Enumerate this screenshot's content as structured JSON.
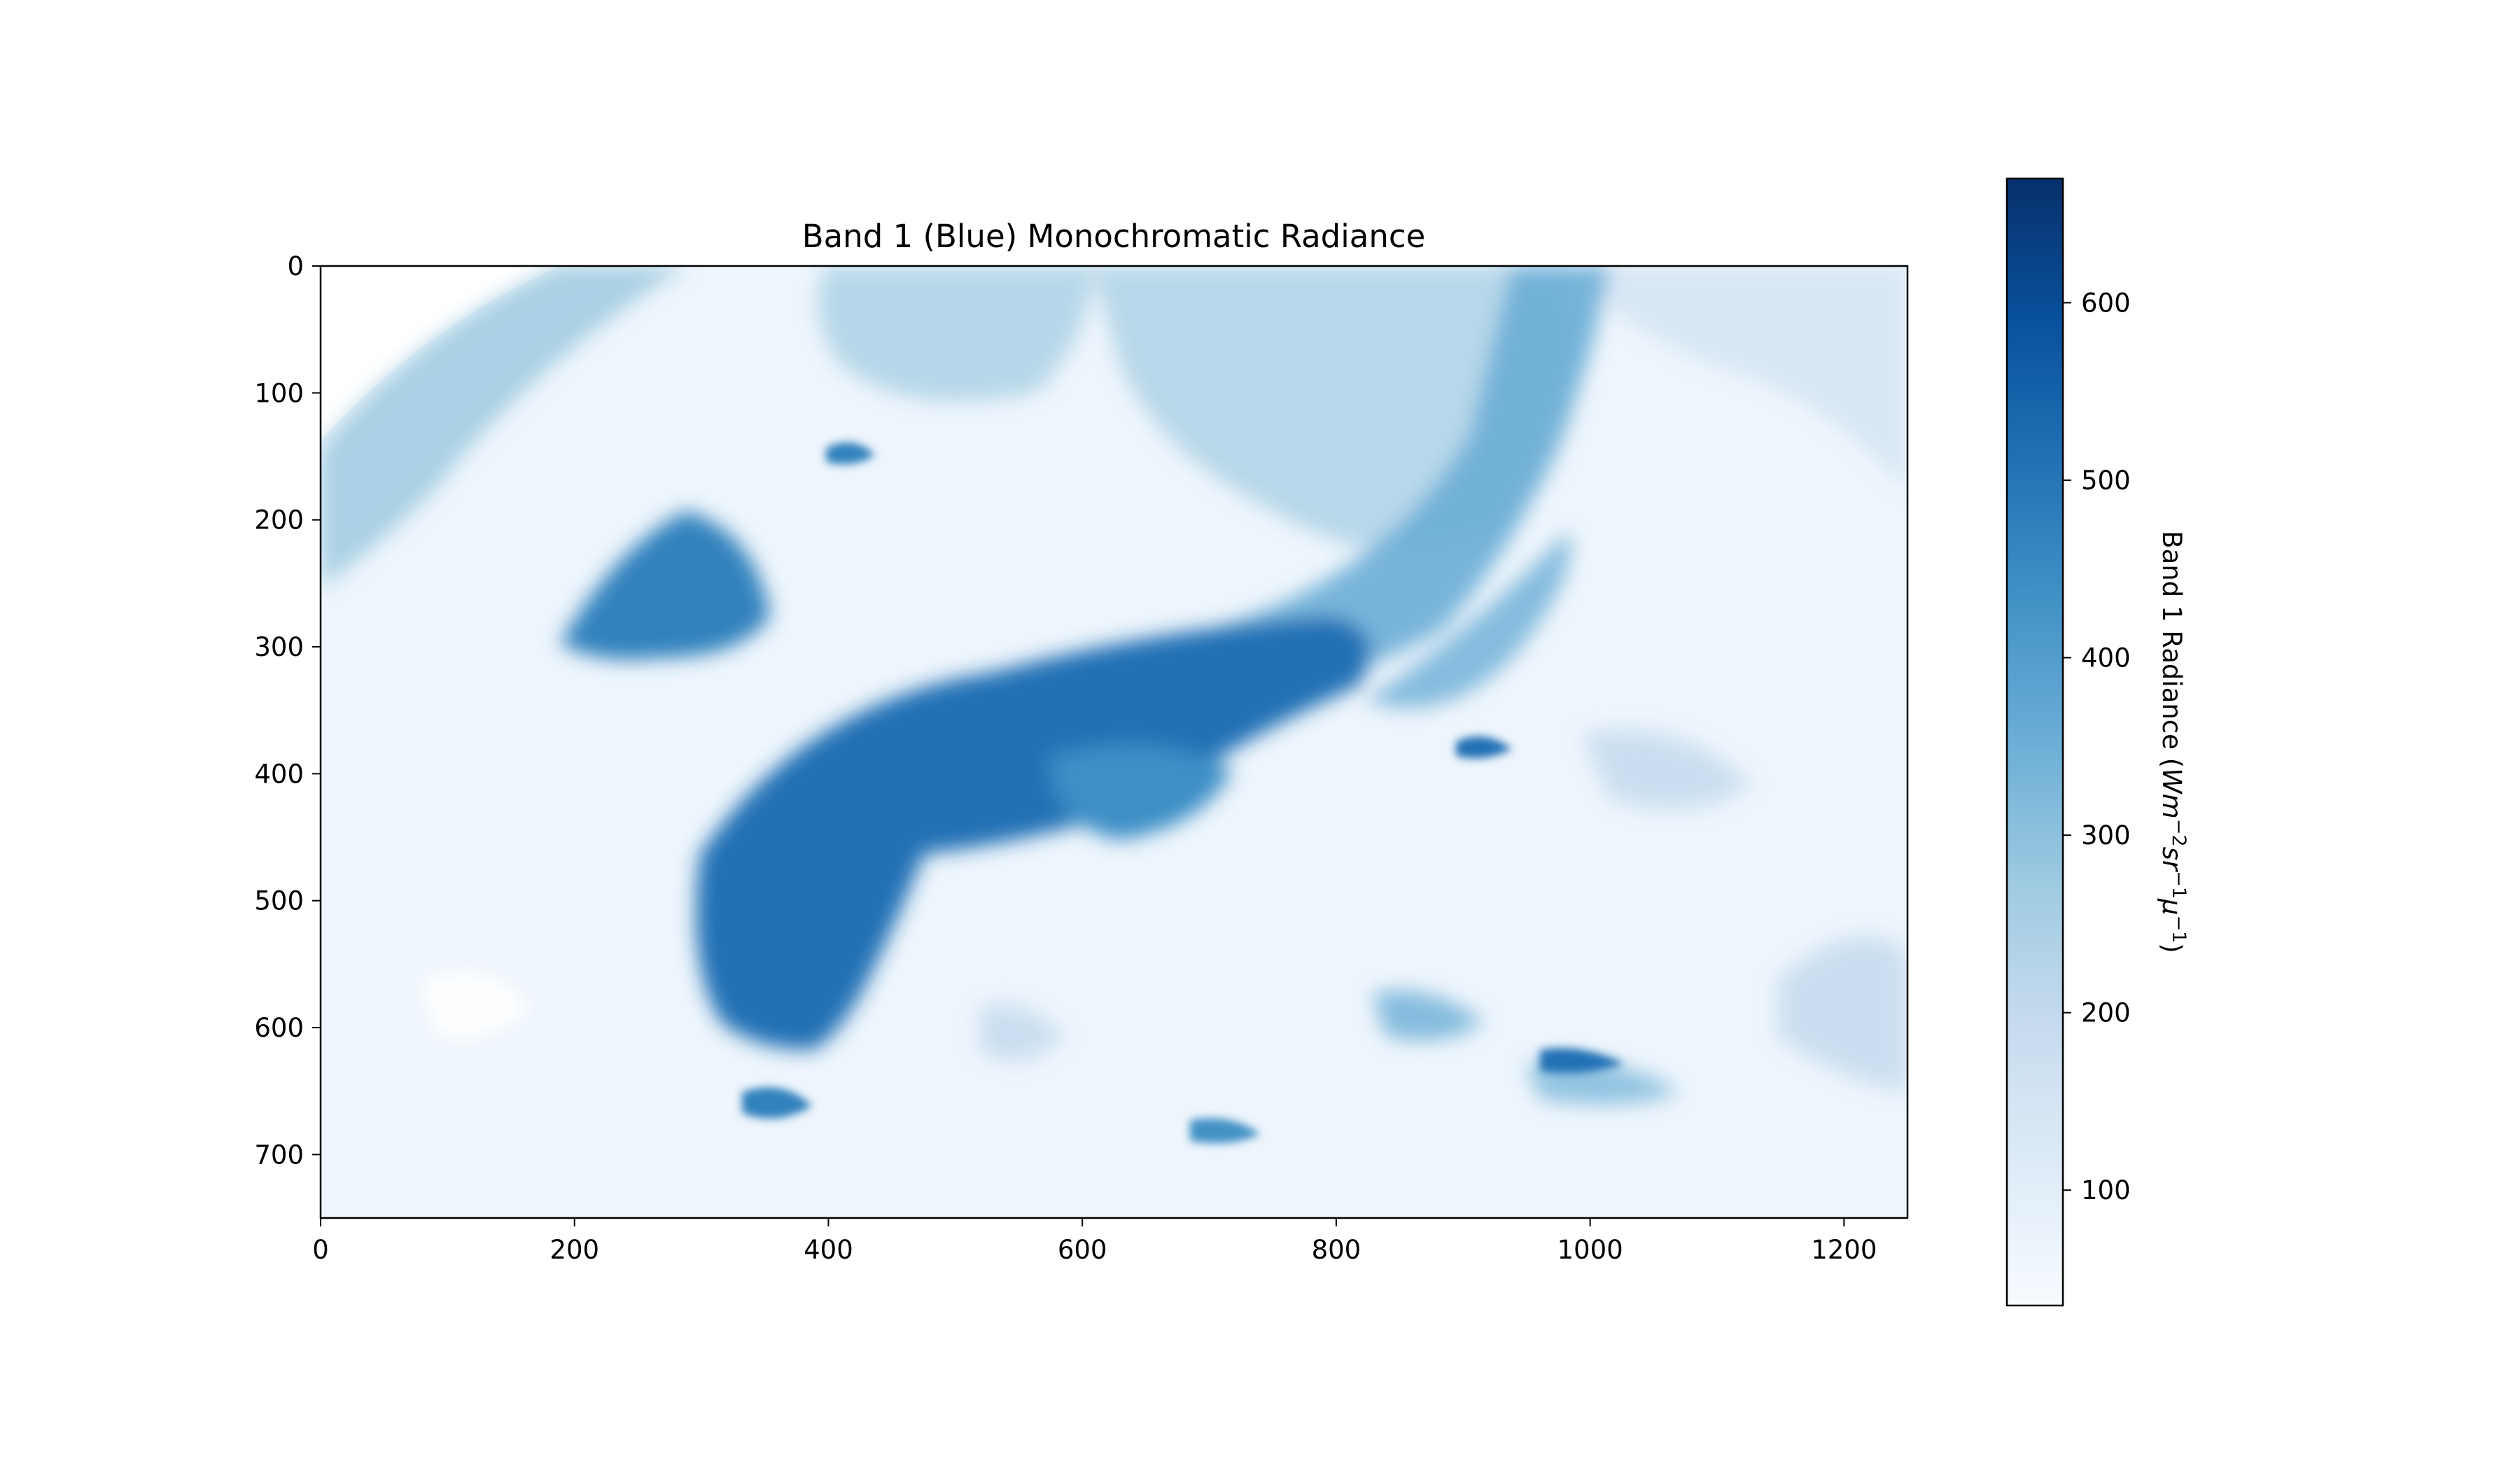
{
  "chart_data": {
    "type": "heatmap",
    "title": "Band 1 (Blue) Monochromatic Radiance",
    "xlabel": "",
    "ylabel": "",
    "x_range": [
      0,
      1250
    ],
    "y_range": [
      750,
      0
    ],
    "x_ticks": [
      "0",
      "200",
      "400",
      "600",
      "800",
      "1000",
      "1200"
    ],
    "y_ticks": [
      "0",
      "100",
      "200",
      "300",
      "400",
      "500",
      "600",
      "700"
    ],
    "colormap": "Blues",
    "colorbar": {
      "label": "Band 1 Radiance (Wm⁻²sr⁻¹μ⁻¹)",
      "range": [
        35,
        670
      ],
      "ticks": [
        "100",
        "200",
        "300",
        "400",
        "500",
        "600"
      ],
      "low_color": "#f7fbff",
      "high_color": "#08306b"
    },
    "grid": false
  }
}
